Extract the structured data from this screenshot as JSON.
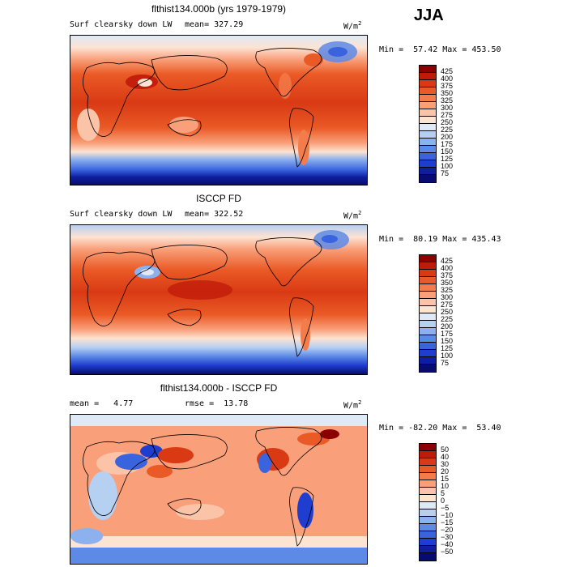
{
  "season": "JJA",
  "panels": [
    {
      "title": "flthist134.000b (yrs 1979-1979)",
      "variable": "Surf clearsky down LW",
      "stat1": "mean= 327.29",
      "stat2": "",
      "units": "W/m",
      "units_exp": "2",
      "minmax": "Min =  57.42 Max = 453.50",
      "levels": [
        "425",
        "400",
        "375",
        "350",
        "325",
        "300",
        "275",
        "250",
        "225",
        "200",
        "175",
        "150",
        "125",
        "100",
        "75"
      ],
      "colors": [
        "#8b0000",
        "#bf1a0a",
        "#d93a14",
        "#ea5a26",
        "#f47c4a",
        "#f9a07a",
        "#fbc3a8",
        "#fde3d2",
        "#dfeaf6",
        "#b6d0f2",
        "#8cb1ee",
        "#5d8ae6",
        "#3a63de",
        "#1f3ecf",
        "#0d1e9e",
        "#080c6e"
      ]
    },
    {
      "title": "ISCCP FD",
      "variable": "Surf clearsky down LW",
      "stat1": "mean= 322.52",
      "stat2": "",
      "units": "W/m",
      "units_exp": "2",
      "minmax": "Min =  80.19 Max = 435.43",
      "levels": [
        "425",
        "400",
        "375",
        "350",
        "325",
        "300",
        "275",
        "250",
        "225",
        "200",
        "175",
        "150",
        "125",
        "100",
        "75"
      ],
      "colors": [
        "#8b0000",
        "#bf1a0a",
        "#d93a14",
        "#ea5a26",
        "#f47c4a",
        "#f9a07a",
        "#fbc3a8",
        "#fde3d2",
        "#dfeaf6",
        "#b6d0f2",
        "#8cb1ee",
        "#5d8ae6",
        "#3a63de",
        "#1f3ecf",
        "#0d1e9e",
        "#080c6e"
      ]
    },
    {
      "title": "flthist134.000b - ISCCP FD",
      "variable": "",
      "stat1": "mean =   4.77",
      "stat2": "rmse =  13.78",
      "units": "W/m",
      "units_exp": "2",
      "minmax": "Min = -82.20 Max =  53.40",
      "levels": [
        "50",
        "40",
        "30",
        "20",
        "15",
        "10",
        "5",
        "0",
        "−5",
        "−10",
        "−15",
        "−20",
        "−30",
        "−40",
        "−50"
      ],
      "colors": [
        "#8b0000",
        "#bf1a0a",
        "#d93a14",
        "#ea5a26",
        "#f47c4a",
        "#f9a07a",
        "#fbc3a8",
        "#fde3d2",
        "#dfeaf6",
        "#b6d0f2",
        "#8cb1ee",
        "#5d8ae6",
        "#3a63de",
        "#1f3ecf",
        "#0d1e9e",
        "#080c6e"
      ]
    }
  ]
}
